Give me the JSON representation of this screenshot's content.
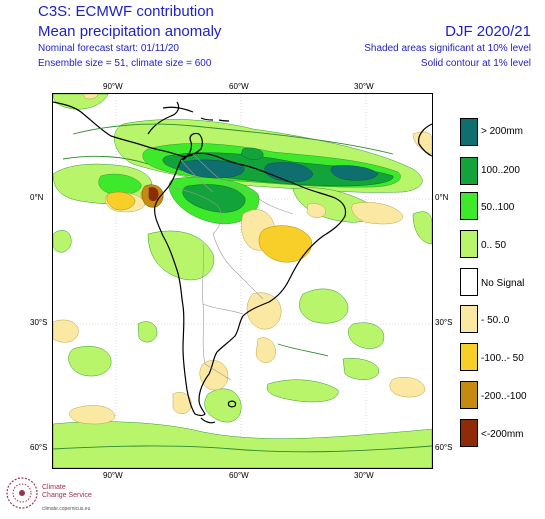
{
  "header": {
    "line1": "C3S: ECMWF contribution",
    "line2": "Mean precipitation anomaly",
    "line3": "Nominal forecast start: 01/11/20",
    "line4": "Ensemble size = 51, climate size = 600",
    "right1": "DJF 2020/21",
    "right2": "Shaded areas significant at 10% level",
    "right3": "Solid contour at 1% level"
  },
  "map": {
    "lon_ticks": [
      "90°W",
      "60°W",
      "30°W"
    ],
    "lat_ticks": [
      "0°N",
      "30°S",
      "60°S"
    ]
  },
  "legend": [
    {
      "label": "> 200mm",
      "color": "#0f6e6e"
    },
    {
      "label": "100..200",
      "color": "#12a33a"
    },
    {
      "label": "50..100",
      "color": "#3ee82a"
    },
    {
      "label": "0.. 50",
      "color": "#b9f56a"
    },
    {
      "label": "No Signal",
      "color": "#ffffff"
    },
    {
      "label": "- 50..0",
      "color": "#fbe9a3"
    },
    {
      "label": "-100..- 50",
      "color": "#f7cf28"
    },
    {
      "label": "-200..-100",
      "color": "#c68a10"
    },
    {
      "label": "<-200mm",
      "color": "#8e2c0a"
    }
  ],
  "logo": {
    "line1": "Climate",
    "line2": "Change Service",
    "line3": "climate.copernicus.eu"
  }
}
